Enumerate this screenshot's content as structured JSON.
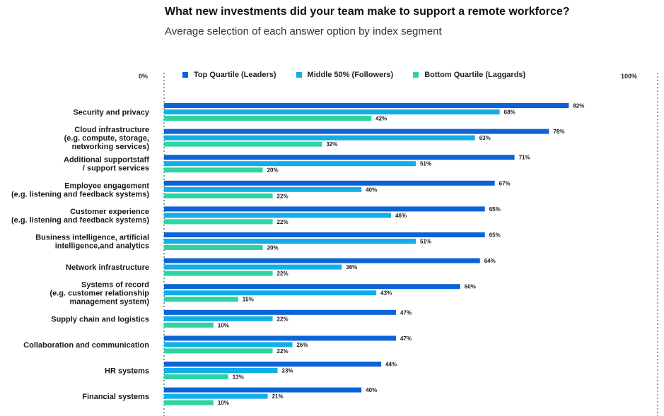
{
  "chart_data": {
    "type": "bar",
    "orientation": "horizontal",
    "title": "What new investments did your team make to support a remote workforce?",
    "subtitle": "Average selection of each answer option by index segment",
    "axis_min_label": "0%",
    "axis_max_label": "100%",
    "xlim": [
      0,
      100
    ],
    "legend_position": "top",
    "categories": [
      [
        "Security and privacy"
      ],
      [
        "Cloud infrastructure",
        "(e.g. compute, storage,",
        "networking services)"
      ],
      [
        "Additional supportstaff",
        "/ support services"
      ],
      [
        "Employee engagement",
        "(e.g. listening and feedback systems)"
      ],
      [
        "Customer experience",
        "(e.g. listening and feedback systems)"
      ],
      [
        "Business intelligence, artificial",
        "intelligence,and analytics"
      ],
      [
        "Network infrastructure"
      ],
      [
        "Systems of record",
        "(e.g. customer relationship",
        "management system)"
      ],
      [
        "Supply chain and logistics"
      ],
      [
        "Collaboration and communication"
      ],
      [
        "HR systems"
      ],
      [
        "Financial systems"
      ]
    ],
    "series": [
      {
        "name": "Top Quartile (Leaders)",
        "color": "#0b63d6",
        "values": [
          82,
          78,
          71,
          67,
          65,
          65,
          64,
          60,
          47,
          47,
          44,
          40
        ]
      },
      {
        "name": "Middle 50% (Followers)",
        "color": "#12aee8",
        "values": [
          68,
          63,
          51,
          40,
          46,
          51,
          36,
          43,
          22,
          26,
          23,
          21
        ]
      },
      {
        "name": "Bottom Quartile (Laggards)",
        "color": "#2fd4a3",
        "values": [
          42,
          32,
          20,
          22,
          22,
          20,
          22,
          15,
          10,
          22,
          13,
          10
        ]
      }
    ],
    "value_suffix": "%"
  }
}
